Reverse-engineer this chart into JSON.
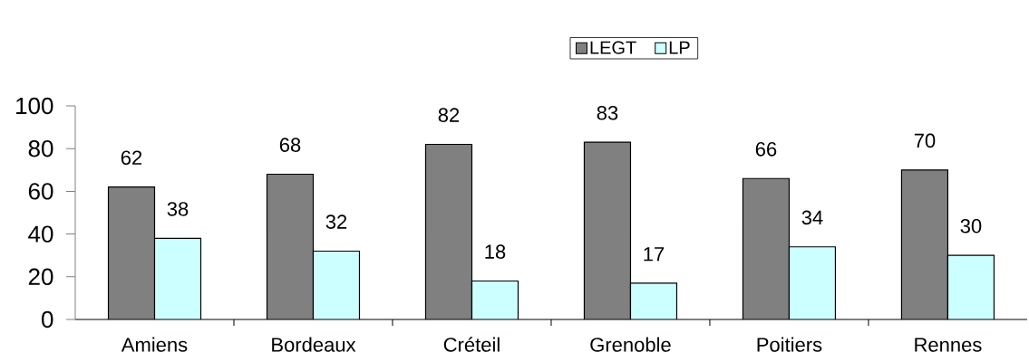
{
  "chart_data": {
    "type": "bar",
    "categories": [
      "Amiens",
      "Bordeaux",
      "Créteil",
      "Grenoble",
      "Poitiers",
      "Rennes"
    ],
    "series": [
      {
        "name": "LEGT",
        "color": "#808080",
        "values": [
          62,
          68,
          82,
          83,
          66,
          70
        ]
      },
      {
        "name": "LP",
        "color": "#ccffff",
        "values": [
          38,
          32,
          18,
          17,
          34,
          30
        ]
      }
    ],
    "ylim": [
      0,
      100
    ],
    "yticks": [
      0,
      20,
      40,
      60,
      80,
      100
    ],
    "data_labels": true,
    "legend": "top"
  }
}
